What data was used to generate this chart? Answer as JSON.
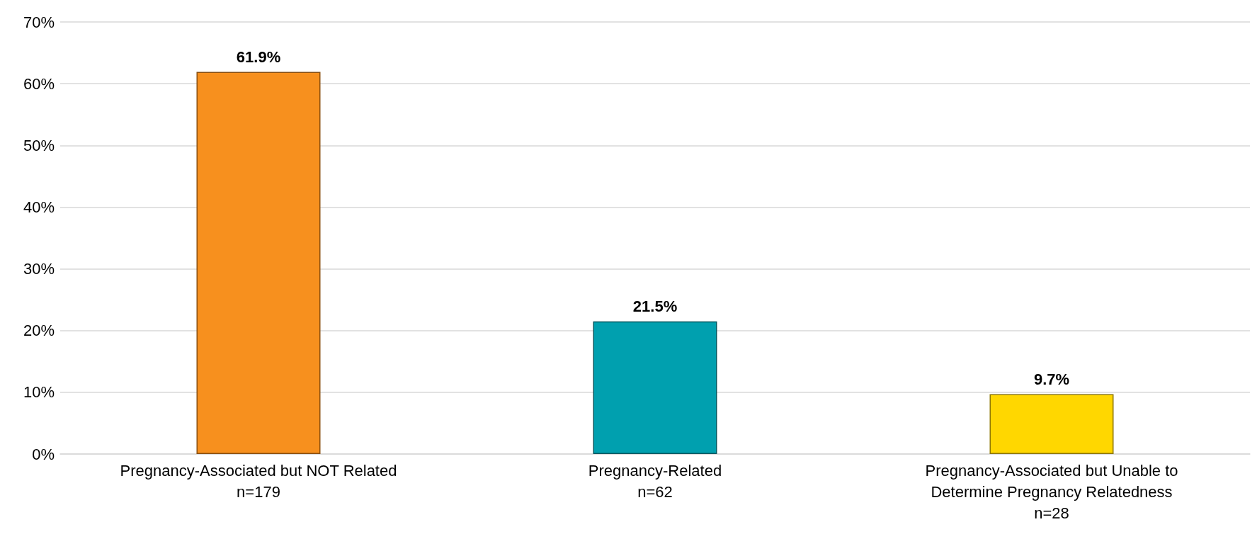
{
  "chart_data": {
    "type": "bar",
    "categories": [
      "Pregnancy-Associated but NOT Related\nn=179",
      "Pregnancy-Related\nn=62",
      "Pregnancy-Associated but Unable to\nDetermine Pregnancy Relatedness\nn=28"
    ],
    "values": [
      61.9,
      21.5,
      9.7
    ],
    "value_labels": [
      "61.9%",
      "21.5%",
      "9.7%"
    ],
    "colors": [
      "#f7901e",
      "#00a0af",
      "#ffd700"
    ],
    "ylim": [
      0,
      70
    ],
    "yticks": [
      {
        "value": 0,
        "label": "0%"
      },
      {
        "value": 10,
        "label": "10%"
      },
      {
        "value": 20,
        "label": "20%"
      },
      {
        "value": 30,
        "label": "30%"
      },
      {
        "value": 40,
        "label": "40%"
      },
      {
        "value": 50,
        "label": "50%"
      },
      {
        "value": 60,
        "label": "60%"
      },
      {
        "value": 70,
        "label": "70%"
      }
    ],
    "grid": "y"
  }
}
